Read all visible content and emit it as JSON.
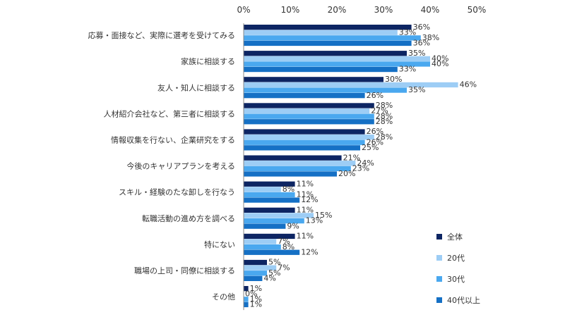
{
  "chart_data": {
    "type": "bar",
    "orientation": "horizontal",
    "title": "",
    "xlabel": "",
    "ylabel": "",
    "xlim": [
      0,
      50
    ],
    "x_ticks": [
      "0%",
      "10%",
      "20%",
      "30%",
      "40%",
      "50%"
    ],
    "x_tick_values": [
      0,
      10,
      20,
      30,
      40,
      50
    ],
    "value_suffix": "%",
    "grid": false,
    "legend_position": "bottom-right",
    "categories": [
      "応募・面接など、実際に選考を受けてみる",
      "家族に相談する",
      "友人・知人に相談する",
      "人材紹介会社など、第三者に相談する",
      "情報収集を行ない、企業研究をする",
      "今後のキャリアプランを考える",
      "スキル・経験のたな卸しを行なう",
      "転職活動の進め方を調べる",
      "特にない",
      "職場の上司・同僚に相談する",
      "その他"
    ],
    "series": [
      {
        "name": "全体",
        "color": "#0d2563",
        "values": [
          36,
          35,
          30,
          28,
          26,
          21,
          11,
          11,
          11,
          5,
          1
        ]
      },
      {
        "name": "20代",
        "color": "#9dcdf5",
        "values": [
          33,
          40,
          46,
          27,
          28,
          24,
          8,
          15,
          7,
          7,
          0
        ]
      },
      {
        "name": "30代",
        "color": "#4aa8ef",
        "values": [
          38,
          40,
          35,
          28,
          26,
          23,
          11,
          13,
          8,
          5,
          1
        ]
      },
      {
        "name": "40代以上",
        "color": "#1570c5",
        "values": [
          36,
          33,
          26,
          28,
          25,
          20,
          12,
          9,
          12,
          4,
          1
        ]
      }
    ]
  }
}
